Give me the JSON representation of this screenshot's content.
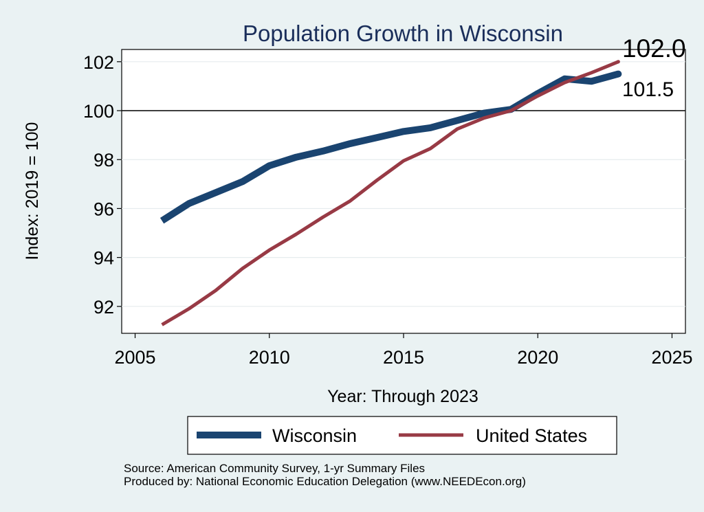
{
  "chart_data": {
    "type": "line",
    "title": "Population Growth in Wisconsin",
    "xlabel": "Year: Through 2023",
    "ylabel": "Index: 2019 = 100",
    "xlim": [
      2004.5,
      2025.5
    ],
    "ylim": [
      90.9,
      102.5
    ],
    "x_ticks": [
      2005,
      2010,
      2015,
      2020,
      2025
    ],
    "y_ticks": [
      92,
      94,
      96,
      98,
      100,
      102
    ],
    "x_tick_labels": [
      "2005",
      "2010",
      "2015",
      "2020",
      "2025"
    ],
    "y_tick_labels": [
      "92",
      "94",
      "96",
      "98",
      "100",
      "102"
    ],
    "reference_line": 100,
    "grid": true,
    "legend_position": "bottom",
    "series": [
      {
        "name": "Wisconsin",
        "color": "#1a4470",
        "x": [
          2006,
          2007,
          2008,
          2009,
          2010,
          2011,
          2012,
          2013,
          2014,
          2015,
          2016,
          2017,
          2018,
          2019,
          2020,
          2021,
          2022,
          2023
        ],
        "values": [
          95.5,
          96.2,
          96.65,
          97.1,
          97.75,
          98.1,
          98.35,
          98.65,
          98.9,
          99.15,
          99.3,
          99.6,
          99.9,
          100.05,
          100.7,
          101.3,
          101.2,
          101.5
        ],
        "end_label": "101.5"
      },
      {
        "name": "United States",
        "color": "#983a45",
        "x": [
          2006,
          2007,
          2008,
          2009,
          2010,
          2011,
          2012,
          2013,
          2014,
          2015,
          2016,
          2017,
          2018,
          2019,
          2020,
          2021,
          2022,
          2023
        ],
        "values": [
          91.25,
          91.9,
          92.65,
          93.55,
          94.3,
          94.95,
          95.65,
          96.3,
          97.15,
          97.95,
          98.45,
          99.25,
          99.7,
          100.0,
          100.6,
          101.15,
          101.55,
          102.0
        ],
        "end_label": "102.0"
      }
    ]
  },
  "footer": {
    "source": "Source: American Community Survey, 1-yr Summary Files",
    "produced": "Produced by: National Economic Education Delegation (www.NEEDEcon.org)"
  }
}
